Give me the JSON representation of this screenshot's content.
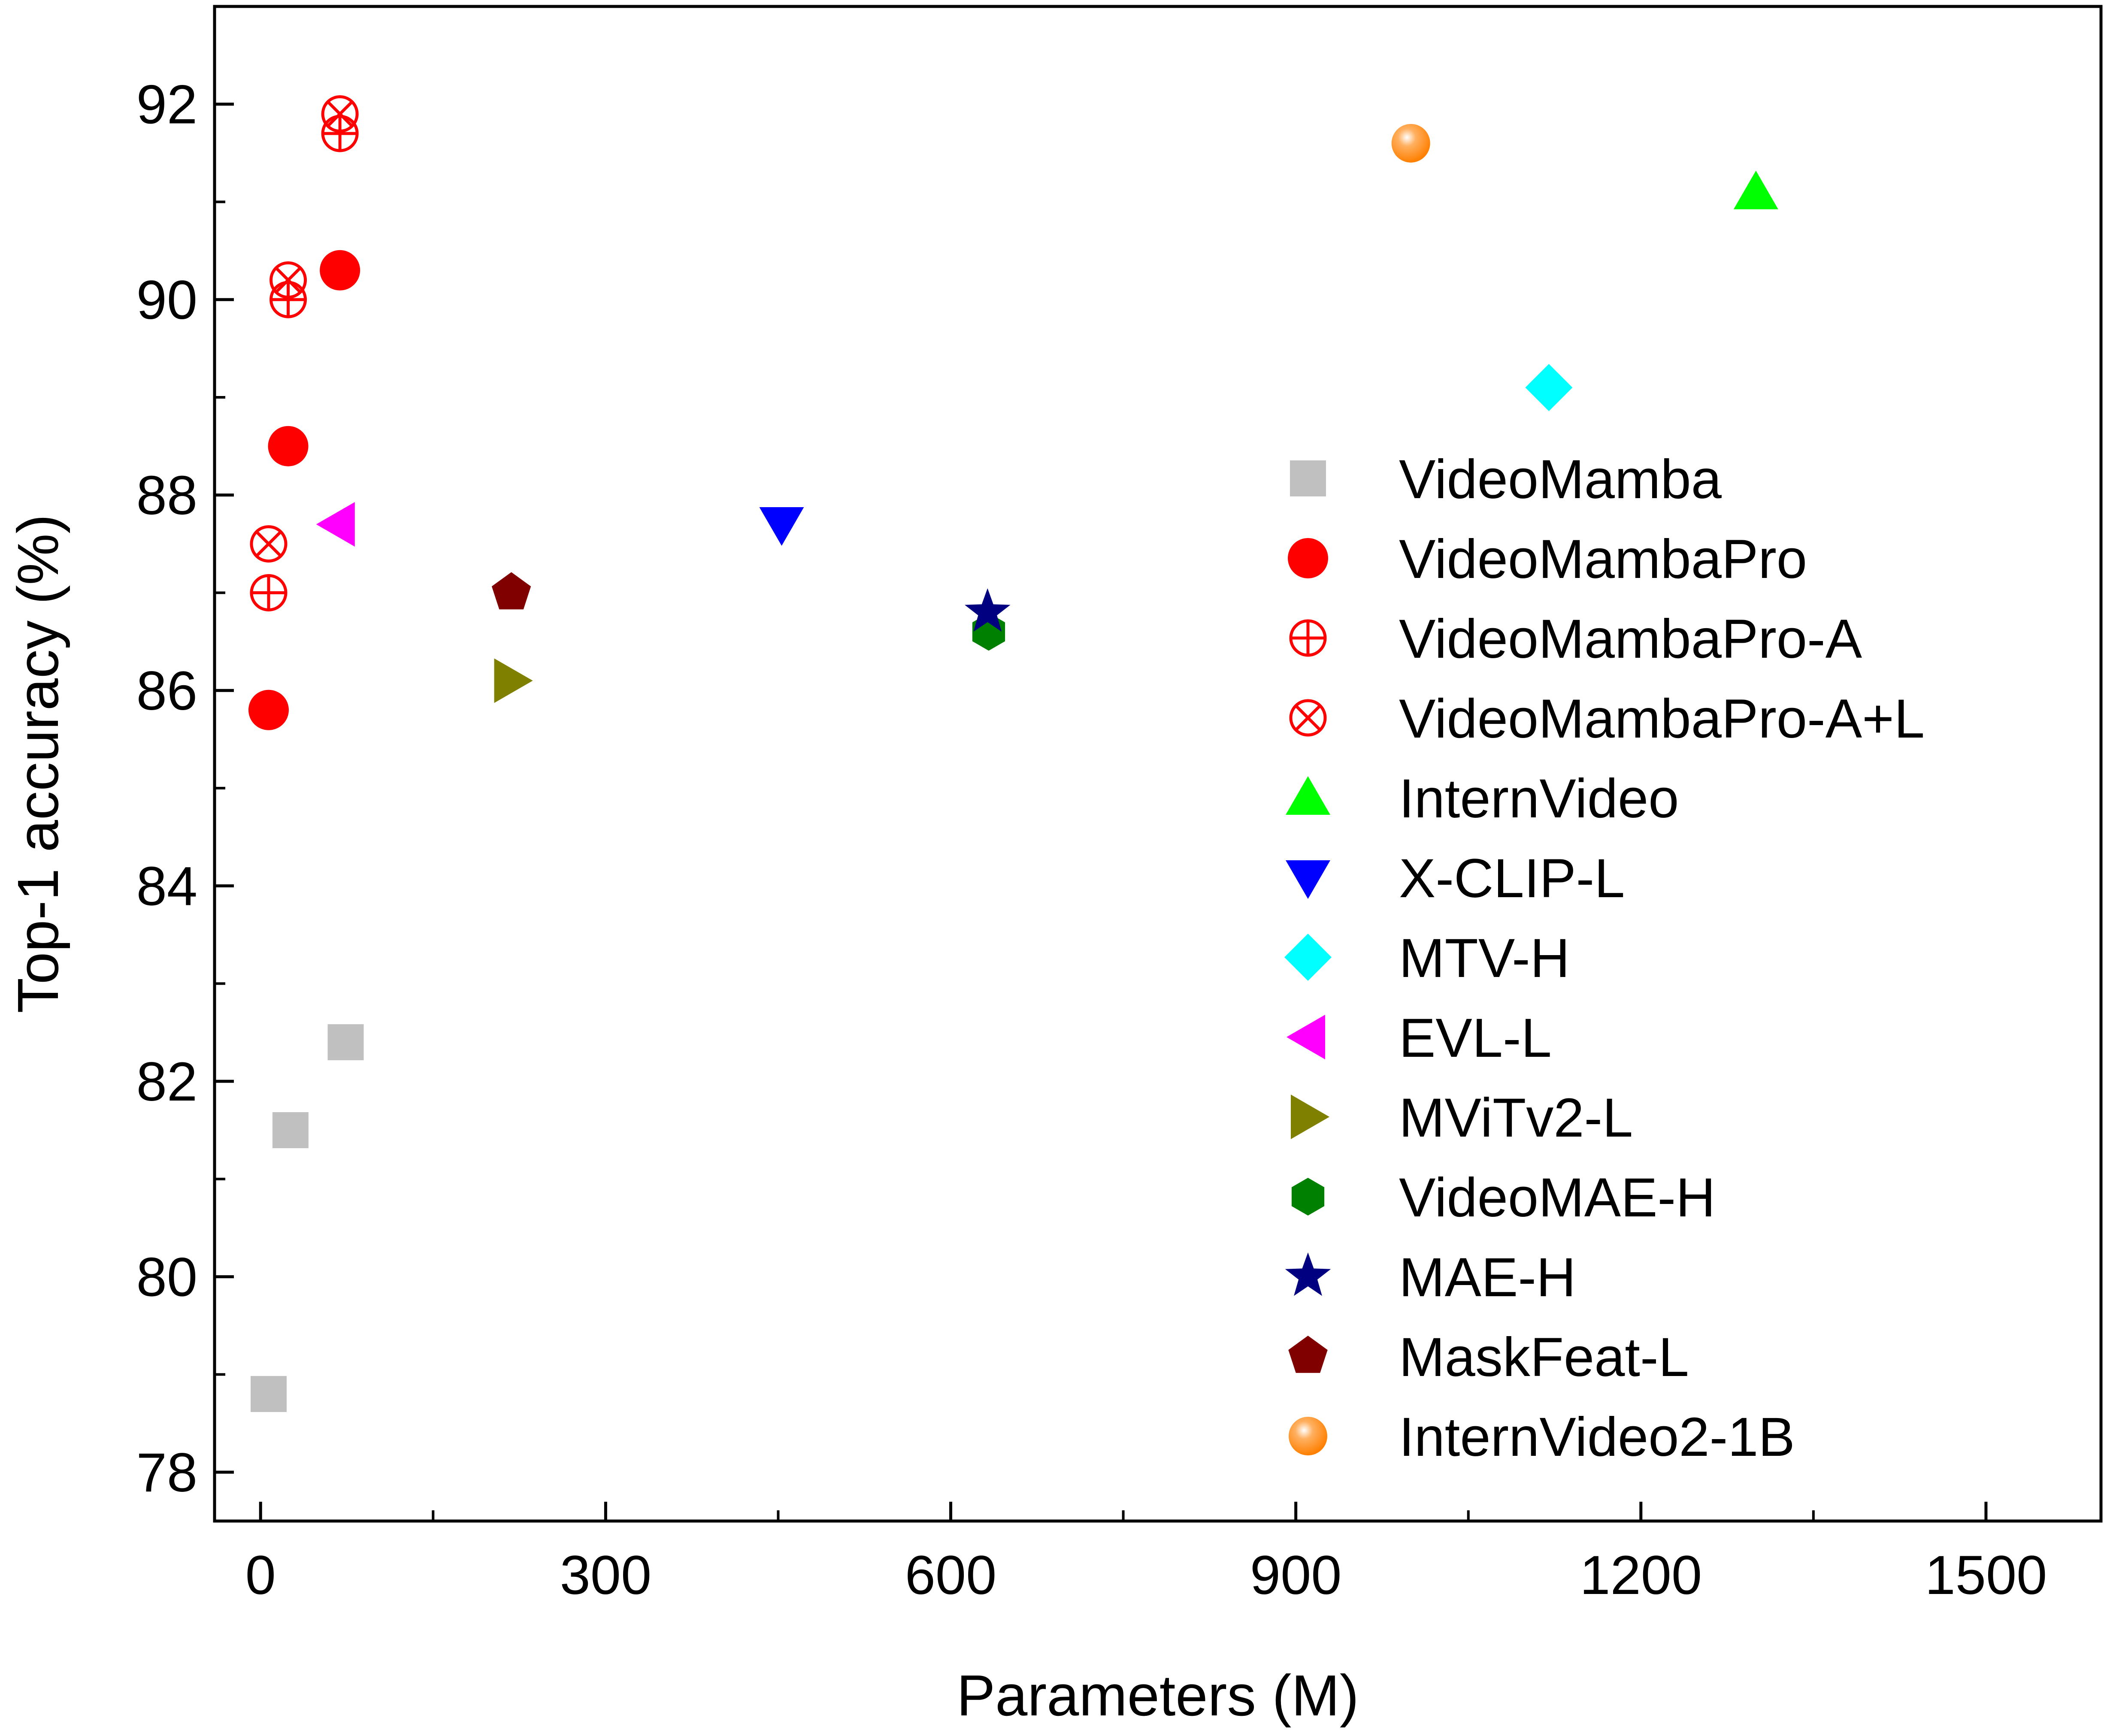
{
  "chart_data": {
    "type": "scatter",
    "title": "",
    "xlabel": "Parameters (M)",
    "ylabel": "Top-1 accuracy (%)",
    "xlim": [
      -40,
      1600
    ],
    "ylim": [
      77.5,
      93
    ],
    "xticks": [
      0,
      300,
      600,
      900,
      1200,
      1500
    ],
    "yticks": [
      78,
      80,
      82,
      84,
      86,
      88,
      90,
      92
    ],
    "grid": false,
    "legend_position": "right",
    "series": [
      {
        "name": "VideoMamba",
        "marker": "square",
        "color": "#c0c0c0",
        "points": [
          {
            "x": 7,
            "y": 78.8
          },
          {
            "x": 26,
            "y": 81.5
          },
          {
            "x": 74,
            "y": 82.4
          }
        ]
      },
      {
        "name": "VideoMambaPro",
        "marker": "circle",
        "color": "#ff0000",
        "points": [
          {
            "x": 7,
            "y": 85.8
          },
          {
            "x": 24,
            "y": 88.5
          },
          {
            "x": 69,
            "y": 90.3
          }
        ]
      },
      {
        "name": "VideoMambaPro-A",
        "marker": "circle-plus",
        "color": "#ff0000",
        "points": [
          {
            "x": 7,
            "y": 87.0
          },
          {
            "x": 24,
            "y": 90.0
          },
          {
            "x": 69,
            "y": 91.7
          }
        ]
      },
      {
        "name": "VideoMambaPro-A+L",
        "marker": "circle-x",
        "color": "#ff0000",
        "points": [
          {
            "x": 7,
            "y": 87.5
          },
          {
            "x": 24,
            "y": 90.2
          },
          {
            "x": 69,
            "y": 91.9
          }
        ]
      },
      {
        "name": "InternVideo",
        "marker": "triangle-up",
        "color": "#00ff00",
        "points": [
          {
            "x": 1300,
            "y": 91.1
          }
        ]
      },
      {
        "name": "X-CLIP-L",
        "marker": "triangle-down",
        "color": "#0000ff",
        "points": [
          {
            "x": 453,
            "y": 87.7
          }
        ]
      },
      {
        "name": "MTV-H",
        "marker": "diamond",
        "color": "#00ffff",
        "points": [
          {
            "x": 1120,
            "y": 89.1
          }
        ]
      },
      {
        "name": "EVL-L",
        "marker": "triangle-left",
        "color": "#ff00ff",
        "points": [
          {
            "x": 67,
            "y": 87.7
          }
        ]
      },
      {
        "name": "MViTv2-L",
        "marker": "triangle-right",
        "color": "#808000",
        "points": [
          {
            "x": 218,
            "y": 86.1
          }
        ]
      },
      {
        "name": "VideoMAE-H",
        "marker": "hexagon",
        "color": "#008000",
        "points": [
          {
            "x": 633,
            "y": 86.6
          }
        ]
      },
      {
        "name": "MAE-H",
        "marker": "star",
        "color": "#000080",
        "points": [
          {
            "x": 632,
            "y": 86.8
          }
        ]
      },
      {
        "name": "MaskFeat-L",
        "marker": "pentagon",
        "color": "#800000",
        "points": [
          {
            "x": 218,
            "y": 87.0
          }
        ]
      },
      {
        "name": "InternVideo2-1B",
        "marker": "sphere",
        "color": "#ff8000",
        "points": [
          {
            "x": 1000,
            "y": 91.6
          }
        ]
      }
    ]
  }
}
